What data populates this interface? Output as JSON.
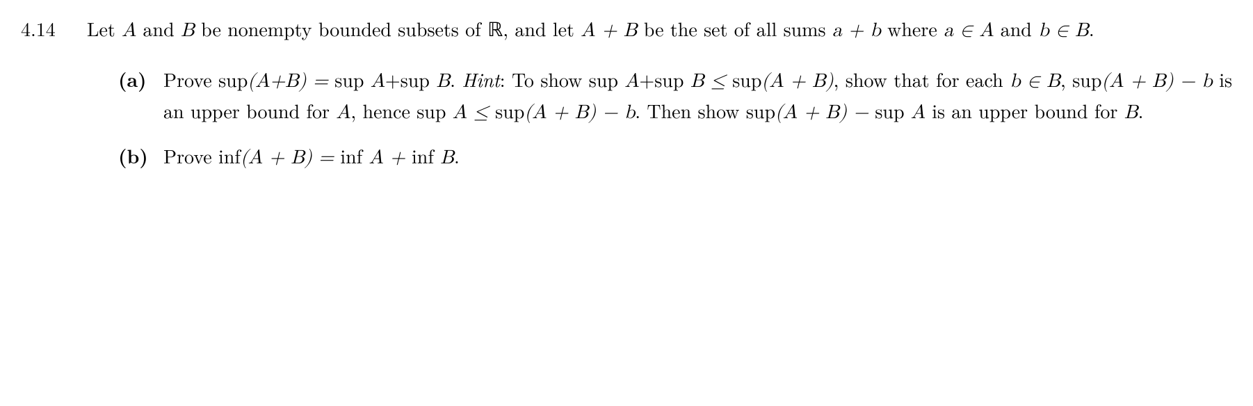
{
  "problem": {
    "number": "4.14",
    "intro_part1": "Let ",
    "intro_A": "A",
    "intro_part2": " and ",
    "intro_B": "B",
    "intro_part3": " be nonempty bounded subsets of ",
    "intro_R": "ℝ",
    "intro_part4": ", and let ",
    "intro_ApB": "A + B",
    "intro_part5": " be the set of all sums ",
    "intro_apb": "a + b",
    "intro_part6": " where ",
    "intro_ainA": "a ∈ A",
    "intro_part7": " and ",
    "intro_binB": "b ∈ B",
    "intro_part8": "."
  },
  "partA": {
    "label": "(a)",
    "t1": "Prove ",
    "m1": "sup",
    "m1b": "(A+B) = ",
    "m2": "sup ",
    "m2b": "A",
    "m2c": "+",
    "m3": "sup ",
    "m3b": "B",
    "t2": ". ",
    "hint": "Hint",
    "t3": ": To show ",
    "m4": "sup ",
    "m4b": "A",
    "m4c": "+",
    "m5": "sup ",
    "m5b": "B ≤ ",
    "m6": "sup",
    "m6b": "(A + B)",
    "t4": ", show that for each ",
    "m7": "b ∈ B",
    "t5": ", ",
    "m8": "sup",
    "m8b": "(A + B) − b",
    "t6": " is an upper bound for ",
    "m9": "A",
    "t7": ", hence ",
    "m10": "sup ",
    "m10b": "A ≤ ",
    "m11": "sup",
    "m11b": "(A + B) − b",
    "t8": ". Then show ",
    "m12": "sup",
    "m12b": "(A + B) − ",
    "m13": "sup ",
    "m13b": "A",
    "t9": " is an upper bound for ",
    "m14": "B",
    "t10": "."
  },
  "partB": {
    "label": "(b)",
    "t1": "Prove ",
    "m1": "inf",
    "m1b": "(A + B) = ",
    "m2": "inf ",
    "m2b": "A + ",
    "m3": "inf ",
    "m3b": "B",
    "t2": "."
  }
}
